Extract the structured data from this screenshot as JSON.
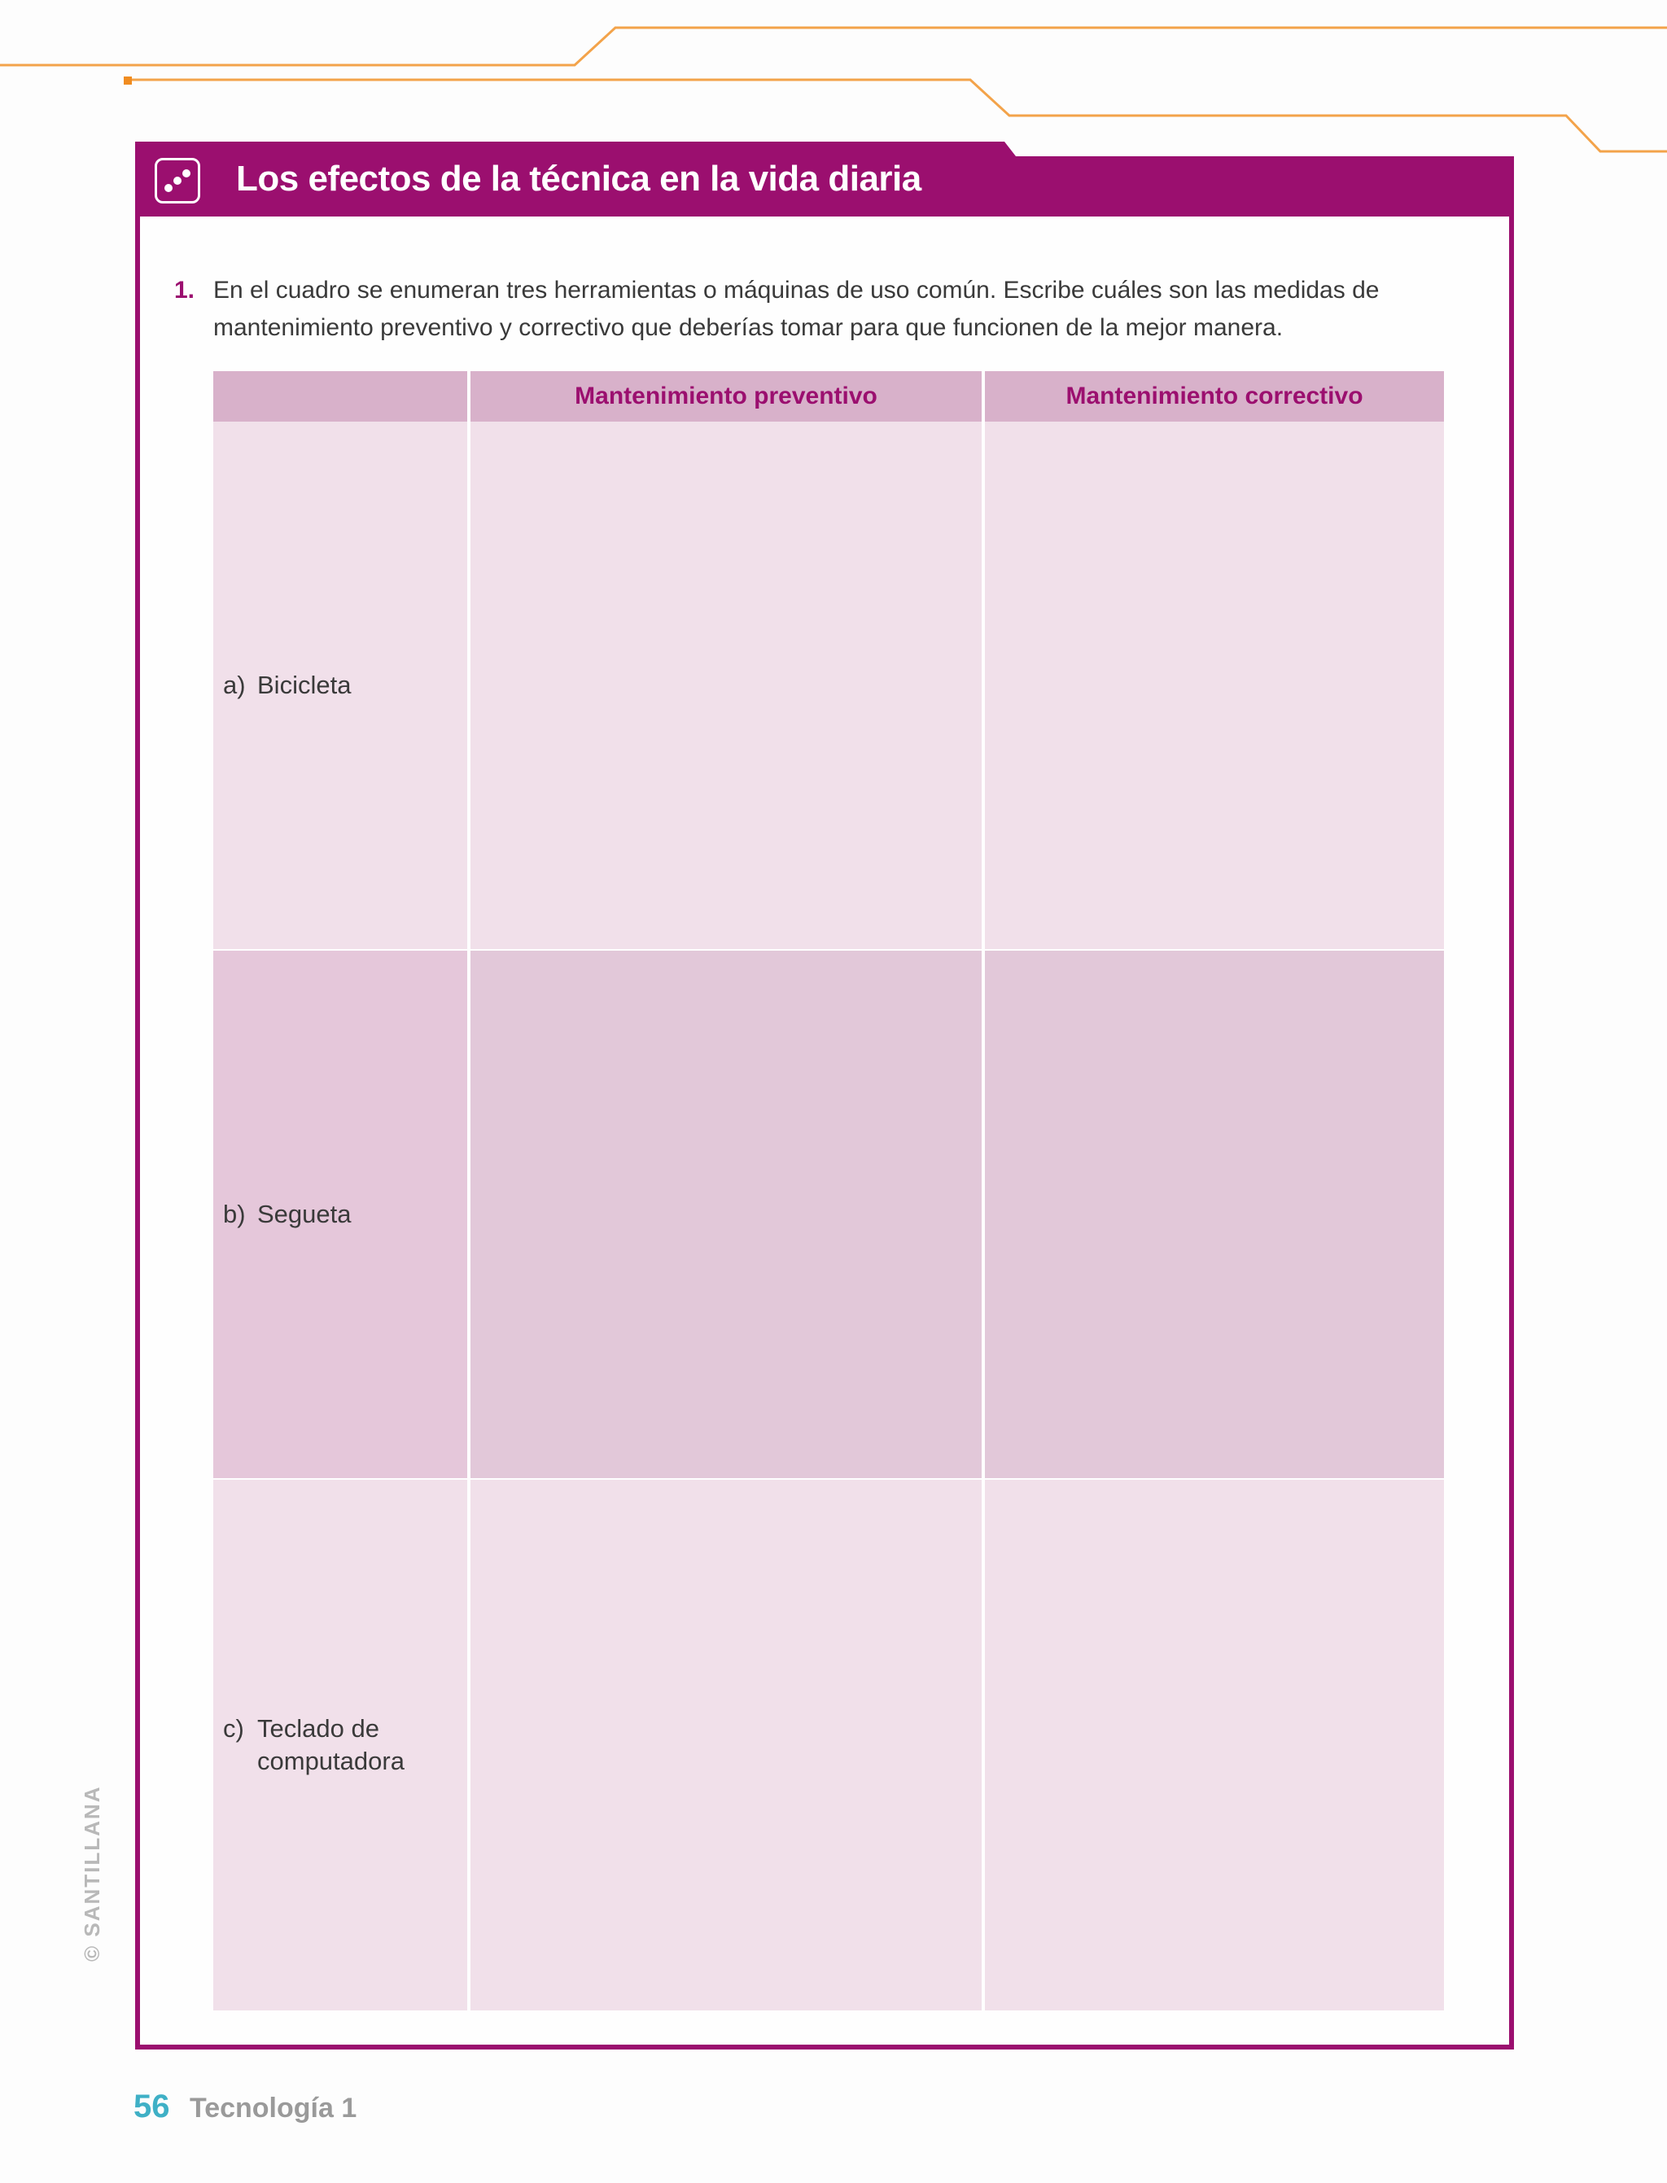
{
  "section": {
    "title": "Los efectos de la técnica en la vida diaria",
    "icon": "dots-activity-icon"
  },
  "question": {
    "number": "1.",
    "text": "En el cuadro se enumeran tres herramientas o máquinas de uso común. Escribe cuáles son las medidas de mantenimiento preventivo y correctivo que deberías tomar para que funcionen de la mejor manera."
  },
  "table": {
    "headers": [
      "",
      "Mantenimiento preventivo",
      "Mantenimiento correctivo"
    ],
    "rows": [
      {
        "letter": "a)",
        "name": "Bicicleta"
      },
      {
        "letter": "b)",
        "name": "Segueta"
      },
      {
        "letter": "c)",
        "name": "Teclado de computadora"
      }
    ]
  },
  "footer": {
    "page_number": "56",
    "book_title": "Tecnología 1"
  },
  "copyright": "© SANTILLANA",
  "colors": {
    "accent": "#9b0f6f",
    "header_fill": "#d8b1ca",
    "row_light": "#f1e0ea",
    "row_dark": "#e2c8d9",
    "deco_orange": "#f0a040",
    "page_number": "#3fb0c6"
  }
}
